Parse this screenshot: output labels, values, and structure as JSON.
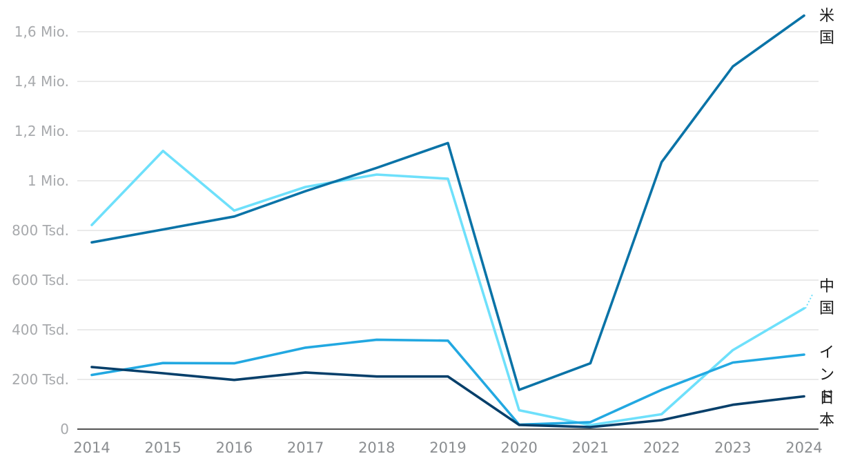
{
  "chart_data": {
    "type": "line",
    "x": [
      "2014",
      "2015",
      "2016",
      "2017",
      "2018",
      "2019",
      "2020",
      "2021",
      "2022",
      "2023",
      "2024"
    ],
    "ylim": [
      0,
      1700000
    ],
    "y_ticks": [
      {
        "value": 0,
        "label": "0"
      },
      {
        "value": 200000,
        "label": "200 Tsd."
      },
      {
        "value": 400000,
        "label": "400 Tsd."
      },
      {
        "value": 600000,
        "label": "600 Tsd."
      },
      {
        "value": 800000,
        "label": "800 Tsd."
      },
      {
        "value": 1000000,
        "label": "1 Mio."
      },
      {
        "value": 1200000,
        "label": "1,2 Mio."
      },
      {
        "value": 1400000,
        "label": "1,4 Mio."
      },
      {
        "value": 1600000,
        "label": "1,6 Mio."
      }
    ],
    "grid": true,
    "legend": "direct labels at right",
    "series": [
      {
        "name": "米国",
        "color": "#0a73a7",
        "values": [
          752000,
          804000,
          856000,
          958000,
          1052000,
          1152000,
          158000,
          265000,
          1075000,
          1460000,
          1665000
        ]
      },
      {
        "name": "中国",
        "color": "#6ee0fb",
        "values": [
          822000,
          1120000,
          880000,
          975000,
          1025000,
          1008000,
          76000,
          16000,
          60000,
          318000,
          486000
        ]
      },
      {
        "name": "インド",
        "color": "#22a8e1",
        "values": [
          218000,
          266000,
          265000,
          328000,
          360000,
          356000,
          18000,
          28000,
          158000,
          268000,
          300000
        ]
      },
      {
        "name": "日本",
        "color": "#063f6a",
        "values": [
          250000,
          225000,
          198000,
          228000,
          212000,
          212000,
          17000,
          8000,
          36000,
          98000,
          132000
        ]
      }
    ]
  }
}
